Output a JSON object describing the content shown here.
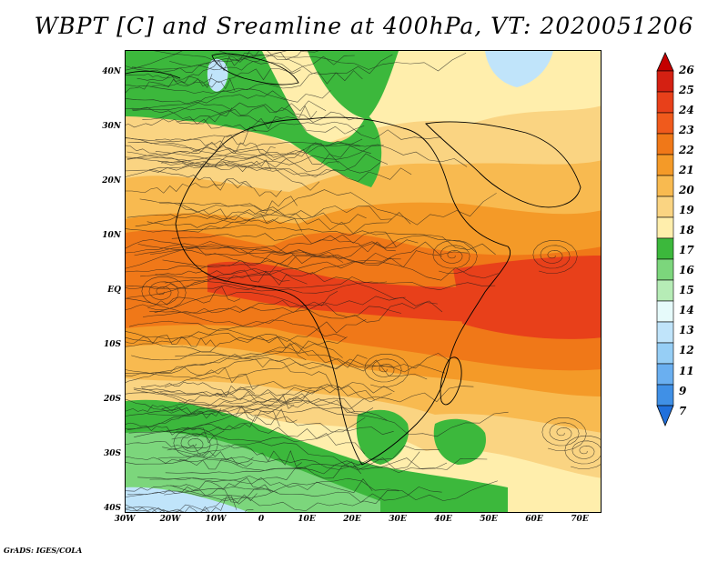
{
  "title": "WBPT [C] and Sreamline at 400hPa, VT: 2020051206",
  "footer": "GrADS: IGES/COLA",
  "lat_labels": [
    "40N",
    "30N",
    "20N",
    "10N",
    "EQ",
    "10S",
    "20S",
    "30S",
    "40S"
  ],
  "lon_labels": [
    "30W",
    "20W",
    "10W",
    "0",
    "10E",
    "20E",
    "30E",
    "40E",
    "50E",
    "60E",
    "70E"
  ],
  "colorbar": {
    "labels": [
      "26",
      "25",
      "24",
      "23",
      "22",
      "21",
      "20",
      "19",
      "18",
      "17",
      "16",
      "15",
      "14",
      "13",
      "12",
      "11",
      "9",
      "7"
    ],
    "colors": [
      "#c40000",
      "#d42012",
      "#e8401a",
      "#f05a1c",
      "#f07818",
      "#f49a28",
      "#f8ba50",
      "#fad482",
      "#ffeeac",
      "#3cb83c",
      "#7cd67c",
      "#b6ecb6",
      "#e6fafa",
      "#c0e4fa",
      "#96cef5",
      "#6aaff0",
      "#4090e6",
      "#2070dc"
    ]
  },
  "map": {
    "field_colors": {
      "green_dark": "#3cb83c",
      "green_light": "#7cd67c",
      "pale": "#ffeeac",
      "yellow": "#fad482",
      "tan": "#f8ba50",
      "orange_light": "#f49a28",
      "orange": "#f07818",
      "red_orange": "#e8401a",
      "blue_light": "#c0e4fa"
    }
  }
}
